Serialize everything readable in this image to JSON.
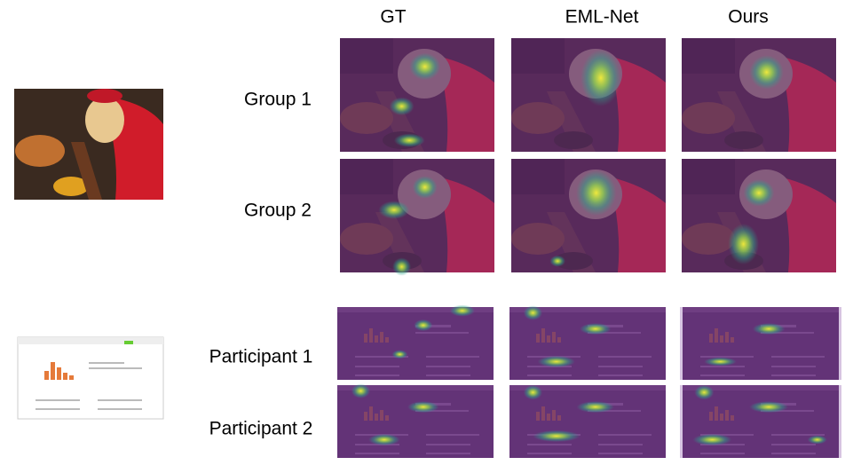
{
  "column_headers": [
    "GT",
    "EML-Net",
    "Ours"
  ],
  "row_labels": [
    "Group 1",
    "Group 2",
    "Participant 1",
    "Participant 2"
  ]
}
